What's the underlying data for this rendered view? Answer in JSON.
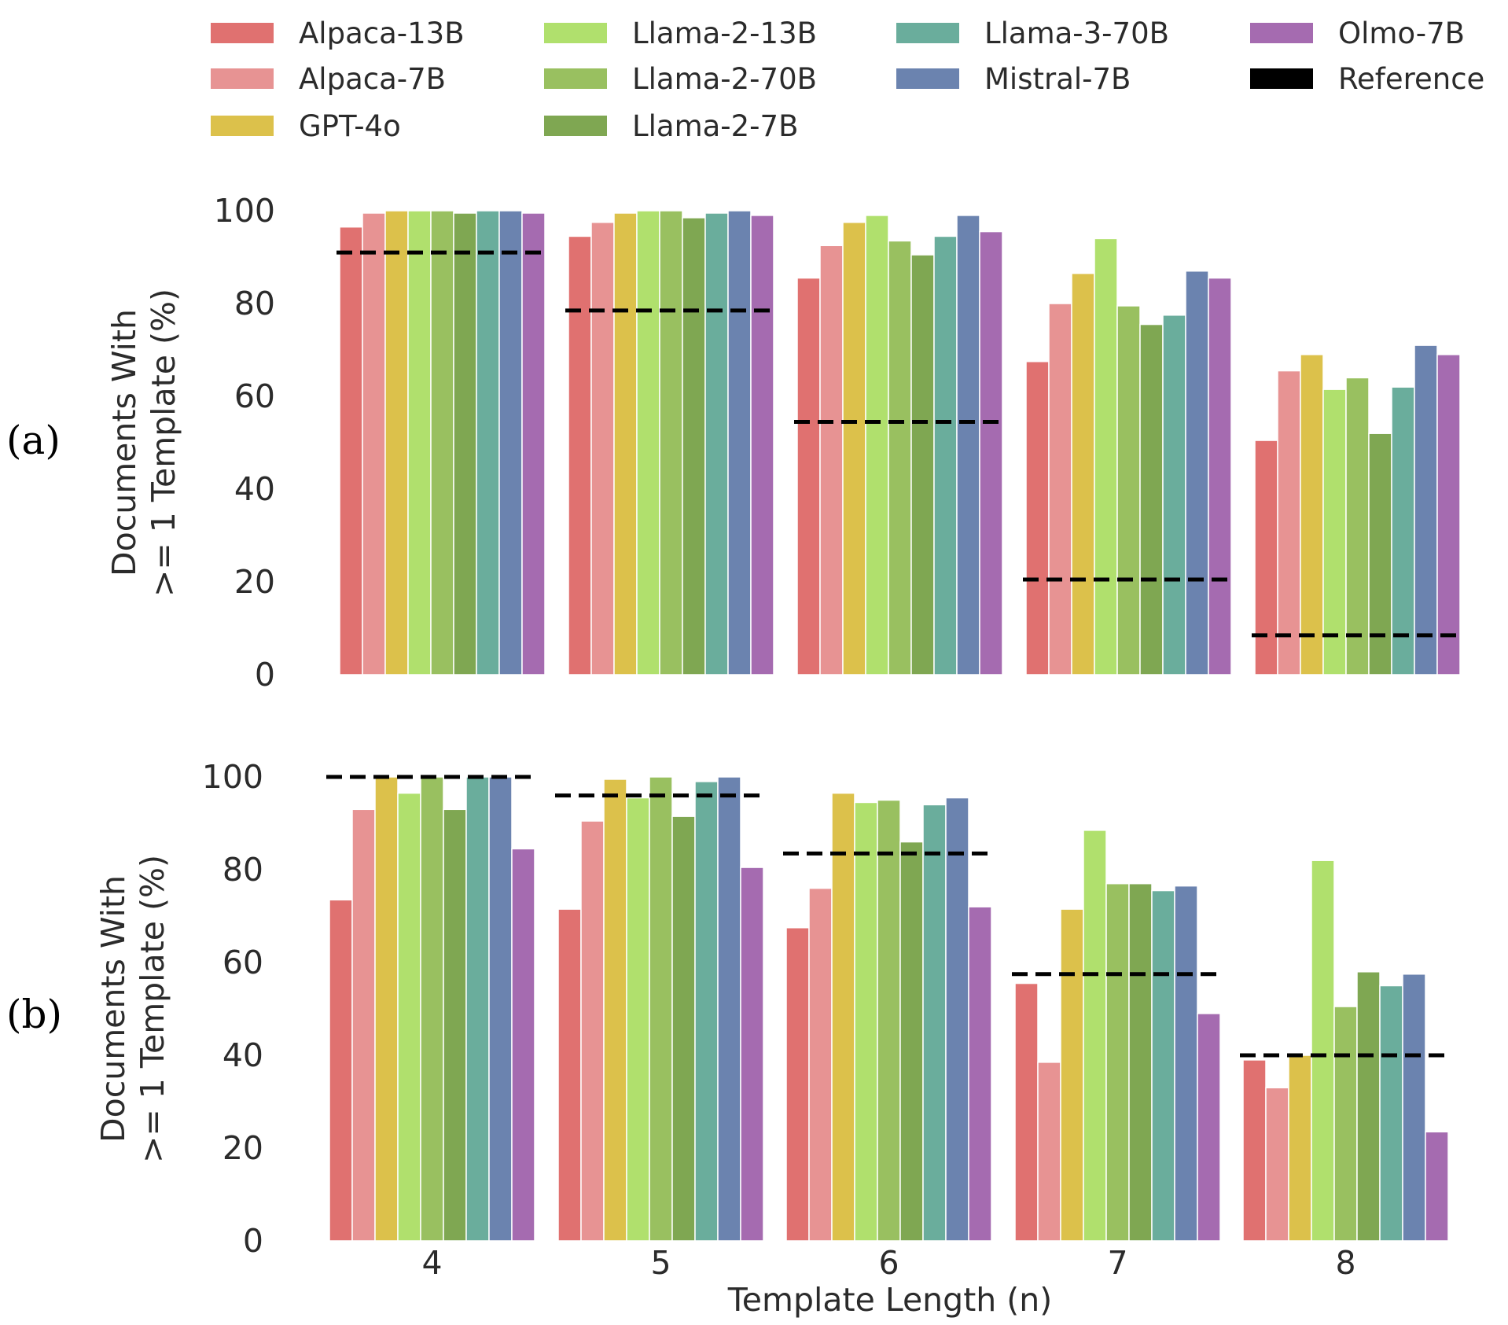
{
  "chart_data": {
    "type": "bar",
    "xlabel": "Template Length (n)",
    "categories": [
      "4",
      "5",
      "6",
      "7",
      "8"
    ],
    "legend": {
      "placement": "top",
      "entries": [
        {
          "name": "Alpaca-13B",
          "color": "#e07170",
          "kind": "bar"
        },
        {
          "name": "Alpaca-7B",
          "color": "#e79393",
          "kind": "bar"
        },
        {
          "name": "GPT-4o",
          "color": "#dcc14b",
          "kind": "bar"
        },
        {
          "name": "Llama-2-13B",
          "color": "#b0e06d",
          "kind": "bar"
        },
        {
          "name": "Llama-2-70B",
          "color": "#99c060",
          "kind": "bar"
        },
        {
          "name": "Llama-2-7B",
          "color": "#7fa752",
          "kind": "bar"
        },
        {
          "name": "Llama-3-70B",
          "color": "#6aad9c",
          "kind": "bar"
        },
        {
          "name": "Mistral-7B",
          "color": "#6b83af",
          "kind": "bar"
        },
        {
          "name": "Olmo-7B",
          "color": "#a56bb0",
          "kind": "bar"
        },
        {
          "name": "Reference",
          "color": "#000000",
          "kind": "line"
        }
      ]
    },
    "panels": [
      {
        "label": "(a)",
        "ylabel_line1": "Documents With",
        "ylabel_line2": ">= 1 Template (%)",
        "ylim": [
          0,
          100
        ],
        "yticks": [
          "0",
          "20",
          "40",
          "60",
          "80",
          "100"
        ],
        "series": [
          {
            "name": "Alpaca-13B",
            "values": [
              96.5,
              94.5,
              85.5,
              67.5,
              50.5
            ]
          },
          {
            "name": "Alpaca-7B",
            "values": [
              99.5,
              97.5,
              92.5,
              80.0,
              65.5
            ]
          },
          {
            "name": "GPT-4o",
            "values": [
              100.0,
              99.5,
              97.5,
              86.5,
              69.0
            ]
          },
          {
            "name": "Llama-2-13B",
            "values": [
              100.0,
              100.0,
              99.0,
              94.0,
              61.5
            ]
          },
          {
            "name": "Llama-2-70B",
            "values": [
              100.0,
              100.0,
              93.5,
              79.5,
              64.0
            ]
          },
          {
            "name": "Llama-2-7B",
            "values": [
              99.5,
              98.5,
              90.5,
              75.5,
              52.0
            ]
          },
          {
            "name": "Llama-3-70B",
            "values": [
              100.0,
              99.5,
              94.5,
              77.5,
              62.0
            ]
          },
          {
            "name": "Mistral-7B",
            "values": [
              100.0,
              100.0,
              99.0,
              87.0,
              71.0
            ]
          },
          {
            "name": "Olmo-7B",
            "values": [
              99.5,
              99.0,
              95.5,
              85.5,
              69.0
            ]
          }
        ],
        "reference": [
          91.0,
          78.5,
          54.5,
          20.5,
          8.5
        ]
      },
      {
        "label": "(b)",
        "ylabel_line1": "Documents With",
        "ylabel_line2": ">= 1 Template (%)",
        "ylim": [
          0,
          100
        ],
        "yticks": [
          "0",
          "20",
          "40",
          "60",
          "80",
          "100"
        ],
        "series": [
          {
            "name": "Alpaca-13B",
            "values": [
              73.5,
              71.5,
              67.5,
              55.5,
              39.0
            ]
          },
          {
            "name": "Alpaca-7B",
            "values": [
              93.0,
              90.5,
              76.0,
              38.5,
              33.0
            ]
          },
          {
            "name": "GPT-4o",
            "values": [
              100.0,
              99.5,
              96.5,
              71.5,
              40.0
            ]
          },
          {
            "name": "Llama-2-13B",
            "values": [
              96.5,
              95.5,
              94.5,
              88.5,
              82.0
            ]
          },
          {
            "name": "Llama-2-70B",
            "values": [
              100.0,
              100.0,
              95.0,
              77.0,
              50.5
            ]
          },
          {
            "name": "Llama-2-7B",
            "values": [
              93.0,
              91.5,
              86.0,
              77.0,
              58.0
            ]
          },
          {
            "name": "Llama-3-70B",
            "values": [
              100.0,
              99.0,
              94.0,
              75.5,
              55.0
            ]
          },
          {
            "name": "Mistral-7B",
            "values": [
              100.0,
              100.0,
              95.5,
              76.5,
              57.5
            ]
          },
          {
            "name": "Olmo-7B",
            "values": [
              84.5,
              80.5,
              72.0,
              49.0,
              23.5
            ]
          }
        ],
        "reference": [
          100.0,
          96.0,
          83.5,
          57.5,
          40.0
        ]
      }
    ]
  }
}
